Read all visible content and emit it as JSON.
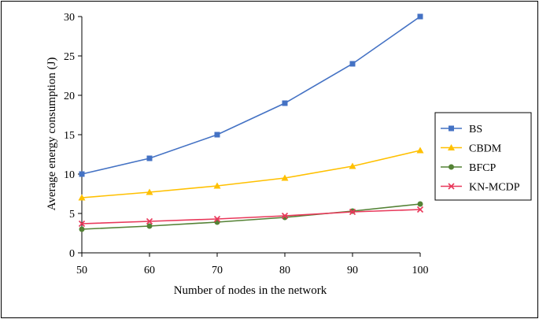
{
  "chart_data": {
    "type": "line",
    "x": [
      50,
      60,
      70,
      80,
      90,
      100
    ],
    "xlabel": "Number of nodes in the network",
    "ylabel": "Average energy consumption (J)",
    "ylim": [
      0,
      30
    ],
    "yticks": [
      "0",
      "5",
      "10",
      "15",
      "20",
      "25",
      "30"
    ],
    "xticks": [
      "50",
      "60",
      "70",
      "80",
      "90",
      "100"
    ],
    "grid": false,
    "legend_position": "right",
    "series": [
      {
        "name": "BS",
        "values": [
          10,
          12,
          15,
          19,
          24,
          30
        ],
        "color": "#4472C4",
        "marker": "square"
      },
      {
        "name": "CBDM",
        "values": [
          7,
          7.7,
          8.5,
          9.5,
          11,
          13
        ],
        "color": "#FFC000",
        "marker": "triangle"
      },
      {
        "name": "BFCP",
        "values": [
          3,
          3.4,
          3.9,
          4.5,
          5.3,
          6.2
        ],
        "color": "#548235",
        "marker": "circle"
      },
      {
        "name": "KN-MCDP",
        "values": [
          3.7,
          4,
          4.3,
          4.7,
          5.2,
          5.5
        ],
        "color": "#E8385A",
        "marker": "x"
      }
    ]
  }
}
